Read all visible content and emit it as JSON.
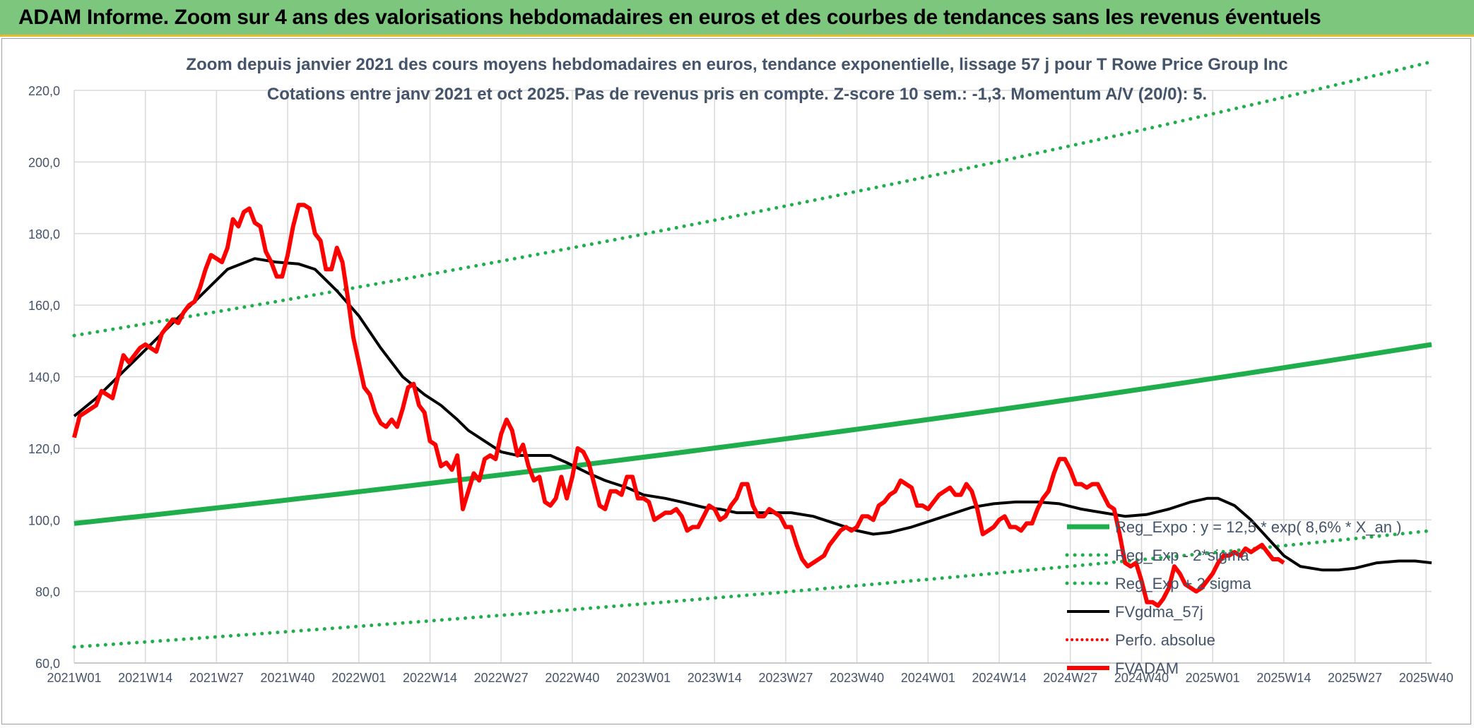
{
  "header": {
    "title": "ADAM Informe. Zoom sur 4 ans des valorisations hebdomadaires en euros et des courbes de tendances sans les revenus éventuels"
  },
  "colors": {
    "header_bg": "#7dc67e",
    "header_accent": "#e8b931",
    "green": "#1fae4b",
    "red": "#ff0000",
    "black": "#000000",
    "grid": "#d9d9d9",
    "text": "#44546a"
  },
  "chart_data": {
    "type": "line",
    "title": "Zoom depuis janvier 2021 des cours moyens hebdomadaires en euros, tendance exponentielle, lissage 57 j pour T Rowe Price Group Inc",
    "subtitle": "Cotations entre janv 2021 et oct 2025. Pas de revenus pris en compte. Z-score 10 sem.: -1,3. Momentum A/V (20/0): 5.",
    "xlabel": "",
    "ylabel": "",
    "ylim": [
      60,
      220
    ],
    "yticks": [
      "60,0",
      "80,0",
      "100,0",
      "120,0",
      "140,0",
      "160,0",
      "180,0",
      "200,0",
      "220,0"
    ],
    "xlim": [
      0,
      248
    ],
    "xticks": [
      {
        "w": 0,
        "label": "2021W01"
      },
      {
        "w": 13,
        "label": "2021W14"
      },
      {
        "w": 26,
        "label": "2021W27"
      },
      {
        "w": 39,
        "label": "2021W40"
      },
      {
        "w": 52,
        "label": "2022W01"
      },
      {
        "w": 65,
        "label": "2022W14"
      },
      {
        "w": 78,
        "label": "2022W27"
      },
      {
        "w": 91,
        "label": "2022W40"
      },
      {
        "w": 104,
        "label": "2023W01"
      },
      {
        "w": 117,
        "label": "2023W14"
      },
      {
        "w": 130,
        "label": "2023W27"
      },
      {
        "w": 143,
        "label": "2023W40"
      },
      {
        "w": 156,
        "label": "2024W01"
      },
      {
        "w": 169,
        "label": "2024W14"
      },
      {
        "w": 182,
        "label": "2024W27"
      },
      {
        "w": 195,
        "label": "2024W40"
      },
      {
        "w": 208,
        "label": "2025W01"
      },
      {
        "w": 221,
        "label": "2025W14"
      },
      {
        "w": 234,
        "label": "2025W27"
      },
      {
        "w": 247,
        "label": "2025W40"
      }
    ],
    "series": [
      {
        "name": "Reg_Expo : y = 12,5 * exp( 8,6% *  X_an )",
        "style": "solid-green",
        "start": 99,
        "end": 149
      },
      {
        "name": "Reg_Exp - 2*sigma",
        "style": "dotted-green",
        "start": 64.5,
        "end": 97
      },
      {
        "name": "Reg_Exp + 2 sigma",
        "style": "dotted-green",
        "start": 151.5,
        "end": 228
      },
      {
        "name": "FVgdma_57j",
        "style": "solid-black",
        "points": [
          [
            0,
            129
          ],
          [
            4,
            134
          ],
          [
            8,
            140
          ],
          [
            12,
            146
          ],
          [
            16,
            152
          ],
          [
            20,
            158
          ],
          [
            24,
            164
          ],
          [
            28,
            170
          ],
          [
            33,
            173
          ],
          [
            37,
            172
          ],
          [
            41,
            171.5
          ],
          [
            44,
            170
          ],
          [
            48,
            164
          ],
          [
            52,
            157
          ],
          [
            56,
            148
          ],
          [
            60,
            140
          ],
          [
            64,
            135
          ],
          [
            67,
            132
          ],
          [
            70,
            128
          ],
          [
            72,
            125
          ],
          [
            75,
            122
          ],
          [
            78,
            119
          ],
          [
            81,
            118
          ],
          [
            84,
            118
          ],
          [
            87,
            118
          ],
          [
            90,
            116
          ],
          [
            94,
            113
          ],
          [
            97,
            111
          ],
          [
            101,
            109
          ],
          [
            104,
            107
          ],
          [
            108,
            106
          ],
          [
            111,
            105
          ],
          [
            115,
            103.5
          ],
          [
            118,
            103
          ],
          [
            121,
            102
          ],
          [
            124,
            102
          ],
          [
            127,
            102
          ],
          [
            131,
            102
          ],
          [
            135,
            101
          ],
          [
            139,
            99
          ],
          [
            143,
            97
          ],
          [
            146,
            96
          ],
          [
            149,
            96.5
          ],
          [
            153,
            98
          ],
          [
            157,
            100
          ],
          [
            161,
            102
          ],
          [
            164,
            103.5
          ],
          [
            168,
            104.5
          ],
          [
            172,
            105
          ],
          [
            176,
            105
          ],
          [
            180,
            104.5
          ],
          [
            184,
            103
          ],
          [
            188,
            102
          ],
          [
            192,
            101
          ],
          [
            196,
            101.5
          ],
          [
            200,
            103
          ],
          [
            204,
            105
          ],
          [
            207,
            106
          ],
          [
            209,
            106
          ],
          [
            212,
            104
          ],
          [
            215,
            100
          ],
          [
            218,
            95
          ],
          [
            221,
            90
          ],
          [
            224,
            87
          ],
          [
            228,
            86
          ],
          [
            231,
            86
          ],
          [
            234,
            86.5
          ],
          [
            238,
            88
          ],
          [
            242,
            88.5
          ],
          [
            245,
            88.5
          ],
          [
            248,
            88
          ]
        ]
      },
      {
        "name": "Perfo. absolue",
        "style": "dotted-red",
        "points": []
      },
      {
        "name": "FVADAM",
        "style": "solid-red",
        "points": [
          [
            0,
            123
          ],
          [
            1,
            129
          ],
          [
            3,
            131
          ],
          [
            4,
            132
          ],
          [
            5,
            136
          ],
          [
            7,
            134
          ],
          [
            8,
            140
          ],
          [
            9,
            146
          ],
          [
            10,
            144
          ],
          [
            12,
            148
          ],
          [
            13,
            149
          ],
          [
            15,
            147
          ],
          [
            16,
            152
          ],
          [
            17,
            154
          ],
          [
            18,
            156
          ],
          [
            19,
            155
          ],
          [
            20,
            158
          ],
          [
            21,
            160
          ],
          [
            22,
            161
          ],
          [
            23,
            165
          ],
          [
            24,
            170
          ],
          [
            25,
            174
          ],
          [
            26,
            173
          ],
          [
            27,
            172
          ],
          [
            28,
            176
          ],
          [
            29,
            184
          ],
          [
            30,
            182
          ],
          [
            31,
            186
          ],
          [
            32,
            187
          ],
          [
            33,
            183
          ],
          [
            34,
            182
          ],
          [
            35,
            175
          ],
          [
            36,
            172
          ],
          [
            37,
            168
          ],
          [
            38,
            168
          ],
          [
            39,
            174
          ],
          [
            40,
            182
          ],
          [
            41,
            188
          ],
          [
            42,
            188
          ],
          [
            43,
            187
          ],
          [
            44,
            180
          ],
          [
            45,
            178
          ],
          [
            46,
            170
          ],
          [
            47,
            170
          ],
          [
            48,
            176
          ],
          [
            49,
            172
          ],
          [
            50,
            162
          ],
          [
            51,
            151
          ],
          [
            53,
            137
          ],
          [
            54,
            135
          ],
          [
            55,
            130
          ],
          [
            56,
            127
          ],
          [
            57,
            126
          ],
          [
            58,
            128
          ],
          [
            59,
            126
          ],
          [
            60,
            131
          ],
          [
            61,
            137
          ],
          [
            62,
            138
          ],
          [
            63,
            132
          ],
          [
            64,
            130
          ],
          [
            65,
            122
          ],
          [
            66,
            121
          ],
          [
            67,
            115
          ],
          [
            68,
            116
          ],
          [
            69,
            114
          ],
          [
            70,
            118
          ],
          [
            71,
            103
          ],
          [
            72,
            108
          ],
          [
            73,
            113
          ],
          [
            74,
            111
          ],
          [
            75,
            117
          ],
          [
            76,
            118
          ],
          [
            77,
            117
          ],
          [
            78,
            124
          ],
          [
            79,
            128
          ],
          [
            80,
            125
          ],
          [
            81,
            118
          ],
          [
            82,
            121
          ],
          [
            83,
            115
          ],
          [
            84,
            111
          ],
          [
            85,
            112
          ],
          [
            86,
            105
          ],
          [
            87,
            104
          ],
          [
            88,
            106
          ],
          [
            89,
            112
          ],
          [
            90,
            106
          ],
          [
            91,
            112
          ],
          [
            92,
            120
          ],
          [
            93,
            119
          ],
          [
            94,
            116
          ],
          [
            95,
            110
          ],
          [
            96,
            104
          ],
          [
            97,
            103
          ],
          [
            98,
            108
          ],
          [
            99,
            108
          ],
          [
            100,
            107
          ],
          [
            101,
            112
          ],
          [
            102,
            112
          ],
          [
            103,
            106
          ],
          [
            104,
            106
          ],
          [
            105,
            105
          ],
          [
            106,
            100
          ],
          [
            107,
            101
          ],
          [
            108,
            102
          ],
          [
            109,
            102
          ],
          [
            110,
            103
          ],
          [
            111,
            101
          ],
          [
            112,
            97
          ],
          [
            113,
            98
          ],
          [
            114,
            98
          ],
          [
            115,
            101
          ],
          [
            116,
            104
          ],
          [
            117,
            103
          ],
          [
            118,
            100
          ],
          [
            119,
            101
          ],
          [
            120,
            104
          ],
          [
            121,
            106
          ],
          [
            122,
            110
          ],
          [
            123,
            110
          ],
          [
            124,
            104
          ],
          [
            125,
            101
          ],
          [
            126,
            101
          ],
          [
            127,
            103
          ],
          [
            128,
            102
          ],
          [
            129,
            101
          ],
          [
            130,
            98
          ],
          [
            131,
            98
          ],
          [
            132,
            93
          ],
          [
            133,
            89
          ],
          [
            134,
            87
          ],
          [
            135,
            88
          ],
          [
            136,
            89
          ],
          [
            137,
            90
          ],
          [
            138,
            93
          ],
          [
            139,
            95
          ],
          [
            140,
            97
          ],
          [
            141,
            98
          ],
          [
            142,
            97
          ],
          [
            143,
            98
          ],
          [
            144,
            101
          ],
          [
            145,
            101
          ],
          [
            146,
            100
          ],
          [
            147,
            104
          ],
          [
            148,
            105
          ],
          [
            149,
            107
          ],
          [
            150,
            108
          ],
          [
            151,
            111
          ],
          [
            152,
            110
          ],
          [
            153,
            109
          ],
          [
            154,
            104
          ],
          [
            155,
            104
          ],
          [
            156,
            103
          ],
          [
            157,
            105
          ],
          [
            158,
            107
          ],
          [
            159,
            108
          ],
          [
            160,
            109
          ],
          [
            161,
            107
          ],
          [
            162,
            107
          ],
          [
            163,
            110
          ],
          [
            164,
            108
          ],
          [
            165,
            103
          ],
          [
            166,
            96
          ],
          [
            167,
            97
          ],
          [
            168,
            98
          ],
          [
            169,
            100
          ],
          [
            170,
            101
          ],
          [
            171,
            98
          ],
          [
            172,
            98
          ],
          [
            173,
            97
          ],
          [
            174,
            99
          ],
          [
            175,
            99
          ],
          [
            176,
            103
          ],
          [
            177,
            106
          ],
          [
            178,
            108
          ],
          [
            179,
            113
          ],
          [
            180,
            117
          ],
          [
            181,
            117
          ],
          [
            182,
            114
          ],
          [
            183,
            110
          ],
          [
            184,
            110
          ],
          [
            185,
            109
          ],
          [
            186,
            110
          ],
          [
            187,
            110
          ],
          [
            188,
            107
          ],
          [
            189,
            104
          ],
          [
            190,
            103
          ],
          [
            191,
            96
          ],
          [
            192,
            88
          ],
          [
            193,
            87
          ],
          [
            194,
            88
          ],
          [
            195,
            83
          ],
          [
            196,
            77
          ],
          [
            197,
            77
          ],
          [
            198,
            76
          ],
          [
            199,
            78
          ],
          [
            200,
            81
          ],
          [
            201,
            87
          ],
          [
            202,
            85
          ],
          [
            203,
            82
          ],
          [
            204,
            81
          ],
          [
            205,
            80
          ],
          [
            206,
            81
          ],
          [
            207,
            83
          ],
          [
            208,
            85
          ],
          [
            209,
            88
          ],
          [
            210,
            90
          ],
          [
            211,
            90
          ],
          [
            212,
            91
          ],
          [
            213,
            90
          ],
          [
            214,
            92
          ],
          [
            215,
            91
          ],
          [
            216,
            92
          ],
          [
            217,
            93
          ],
          [
            218,
            91
          ],
          [
            219,
            89
          ],
          [
            220,
            89
          ],
          [
            221,
            88
          ]
        ]
      }
    ],
    "legend_position": "bottom-right"
  }
}
